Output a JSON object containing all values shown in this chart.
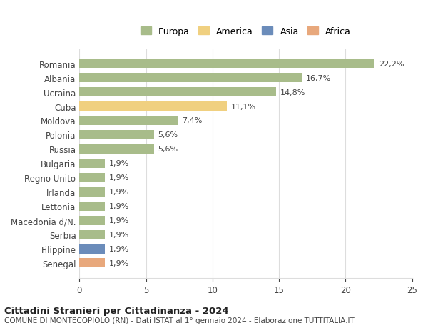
{
  "categories": [
    "Senegal",
    "Filippine",
    "Serbia",
    "Macedonia d/N.",
    "Lettonia",
    "Irlanda",
    "Regno Unito",
    "Bulgaria",
    "Russia",
    "Polonia",
    "Moldova",
    "Cuba",
    "Ucraina",
    "Albania",
    "Romania"
  ],
  "values": [
    1.9,
    1.9,
    1.9,
    1.9,
    1.9,
    1.9,
    1.9,
    1.9,
    5.6,
    5.6,
    7.4,
    11.1,
    14.8,
    16.7,
    22.2
  ],
  "colors": [
    "#e8a87c",
    "#6b8cba",
    "#a8bc8a",
    "#a8bc8a",
    "#a8bc8a",
    "#a8bc8a",
    "#a8bc8a",
    "#a8bc8a",
    "#a8bc8a",
    "#a8bc8a",
    "#a8bc8a",
    "#f0d080",
    "#a8bc8a",
    "#a8bc8a",
    "#a8bc8a"
  ],
  "labels": [
    "1,9%",
    "1,9%",
    "1,9%",
    "1,9%",
    "1,9%",
    "1,9%",
    "1,9%",
    "1,9%",
    "5,6%",
    "5,6%",
    "7,4%",
    "11,1%",
    "14,8%",
    "16,7%",
    "22,2%"
  ],
  "legend": [
    {
      "label": "Europa",
      "color": "#a8bc8a"
    },
    {
      "label": "America",
      "color": "#f0d080"
    },
    {
      "label": "Asia",
      "color": "#6b8cba"
    },
    {
      "label": "Africa",
      "color": "#e8a87c"
    }
  ],
  "xlim": [
    0,
    25
  ],
  "xticks": [
    0,
    5,
    10,
    15,
    20,
    25
  ],
  "title1": "Cittadini Stranieri per Cittadinanza - 2024",
  "title2": "COMUNE DI MONTECOPIOLO (RN) - Dati ISTAT al 1° gennaio 2024 - Elaborazione TUTTITALIA.IT",
  "bg_color": "#ffffff",
  "grid_color": "#dddddd",
  "bar_height": 0.65
}
